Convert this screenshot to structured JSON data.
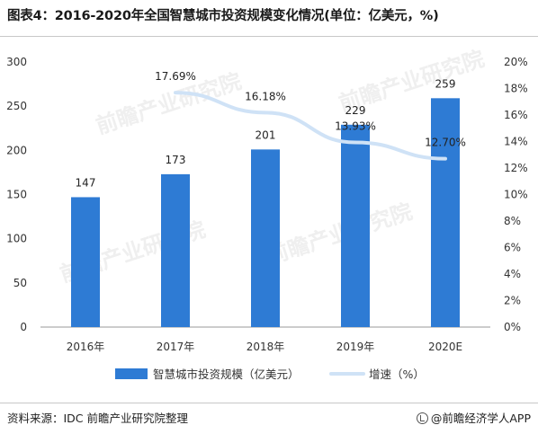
{
  "page": {
    "title": "图表4：2016-2020年全国智慧城市投资规模变化情况(单位：亿美元，%)",
    "source": "资料来源：IDC 前瞻产业研究院整理",
    "brand": "@前瞻经济学人APP",
    "watermark": "前瞻产业研究院",
    "colors": {
      "bar": "#2e7bd4",
      "line": "#cfe2f6",
      "axis": "#999999",
      "text": "#333333"
    }
  },
  "chart_data": {
    "type": "bar",
    "categories": [
      "2016年",
      "2017年",
      "2018年",
      "2019年",
      "2020E"
    ],
    "series": [
      {
        "name": "智慧城市投资规模（亿美元）",
        "type": "bar",
        "axis": "left",
        "values": [
          147,
          173,
          201,
          229,
          259
        ],
        "labels": [
          "147",
          "173",
          "201",
          "229",
          "259"
        ]
      },
      {
        "name": "增速（%）",
        "type": "line",
        "axis": "right",
        "values": [
          null,
          17.69,
          16.18,
          13.93,
          12.7
        ],
        "labels": [
          "",
          "17.69%",
          "16.18%",
          "13.93%",
          "12.70%"
        ]
      }
    ],
    "left_axis": {
      "min": 0,
      "max": 300,
      "ticks": [
        "0",
        "50",
        "100",
        "150",
        "200",
        "250",
        "300"
      ]
    },
    "right_axis": {
      "min": 0,
      "max": 20,
      "ticks": [
        "0%",
        "2%",
        "4%",
        "6%",
        "8%",
        "10%",
        "12%",
        "14%",
        "16%",
        "18%",
        "20%"
      ]
    },
    "legend": {
      "position": "bottom"
    },
    "grid": false
  }
}
